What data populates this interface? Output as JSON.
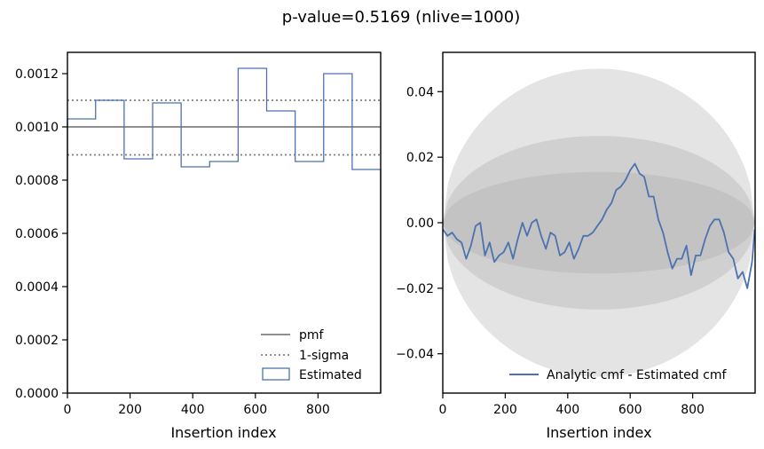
{
  "figure": {
    "title": "p-value=0.5169 (nlive=1000)"
  },
  "chart_data": [
    {
      "type": "histogram",
      "xlabel": "Insertion index",
      "ylabel": "",
      "xlim": [
        0,
        1000
      ],
      "ylim": [
        0,
        0.00128
      ],
      "xticks": [
        0,
        200,
        400,
        600,
        800
      ],
      "xtick_labels": [
        "0",
        "200",
        "400",
        "600",
        "800"
      ],
      "yticks": [
        0,
        0.0002,
        0.0004,
        0.0006,
        0.0008,
        0.001,
        0.0012
      ],
      "ytick_labels": [
        "0.0000",
        "0.0002",
        "0.0004",
        "0.0006",
        "0.0008",
        "0.0010",
        "0.0012"
      ],
      "bin_edges": [
        0,
        90,
        181,
        272,
        363,
        454,
        545,
        636,
        727,
        818,
        909,
        1000
      ],
      "bin_values": [
        0.00103,
        0.0011,
        0.00088,
        0.00109,
        0.00085,
        0.00087,
        0.00122,
        0.00106,
        0.00087,
        0.0012,
        0.00084
      ],
      "pmf": 0.001,
      "sigma_band": [
        0.000895,
        0.0011
      ],
      "legend": {
        "entries": [
          "pmf",
          "1-sigma",
          "Estimated"
        ],
        "placement": "lower-right"
      },
      "colors": {
        "pmf": "#808080",
        "sigma": "#808080",
        "estimated": "#4c72b0"
      }
    },
    {
      "type": "line",
      "xlabel": "Insertion index",
      "ylabel": "",
      "xlim": [
        0,
        1000
      ],
      "ylim": [
        -0.052,
        0.052
      ],
      "xticks": [
        0,
        200,
        400,
        600,
        800
      ],
      "xtick_labels": [
        "0",
        "200",
        "400",
        "600",
        "800"
      ],
      "yticks": [
        -0.04,
        -0.02,
        0.0,
        0.02,
        0.04
      ],
      "ytick_labels": [
        "−0.04",
        "−0.02",
        "0.00",
        "0.02",
        "0.04"
      ],
      "series": [
        {
          "name": "Analytic cmf - Estimated cmf",
          "color": "#4c72b0",
          "x": [
            0,
            15,
            30,
            45,
            60,
            75,
            90,
            105,
            120,
            135,
            150,
            165,
            180,
            195,
            210,
            225,
            240,
            255,
            270,
            285,
            300,
            315,
            330,
            345,
            360,
            375,
            390,
            405,
            420,
            435,
            450,
            465,
            480,
            495,
            510,
            525,
            540,
            555,
            570,
            585,
            600,
            615,
            630,
            645,
            660,
            675,
            690,
            705,
            720,
            735,
            750,
            765,
            780,
            795,
            810,
            825,
            840,
            855,
            870,
            885,
            900,
            915,
            930,
            945,
            960,
            975,
            990,
            999
          ],
          "y": [
            -0.002,
            -0.004,
            -0.003,
            -0.005,
            -0.006,
            -0.011,
            -0.007,
            -0.001,
            0.0,
            -0.01,
            -0.006,
            -0.012,
            -0.01,
            -0.009,
            -0.006,
            -0.011,
            -0.005,
            0.0,
            -0.004,
            0.0,
            0.001,
            -0.004,
            -0.008,
            -0.003,
            -0.004,
            -0.01,
            -0.009,
            -0.006,
            -0.011,
            -0.008,
            -0.004,
            -0.004,
            -0.003,
            -0.001,
            0.001,
            0.004,
            0.006,
            0.01,
            0.011,
            0.013,
            0.016,
            0.018,
            0.015,
            0.014,
            0.008,
            0.008,
            0.001,
            -0.003,
            -0.009,
            -0.014,
            -0.011,
            -0.011,
            -0.007,
            -0.016,
            -0.01,
            -0.01,
            -0.005,
            -0.001,
            0.001,
            0.001,
            -0.003,
            -0.009,
            -0.011,
            -0.017,
            -0.015,
            -0.02,
            -0.012,
            -0.002
          ]
        }
      ],
      "bands": [
        {
          "label": "outer",
          "halfwidth": 0.047,
          "color": "#e4e4e4"
        },
        {
          "label": "middle",
          "halfwidth": 0.0265,
          "color": "#d0d0d0"
        },
        {
          "label": "inner",
          "halfwidth": 0.0155,
          "color": "#c3c3c3"
        }
      ],
      "legend": {
        "entries": [
          "Analytic cmf - Estimated cmf"
        ],
        "placement": "lower-right"
      }
    }
  ]
}
